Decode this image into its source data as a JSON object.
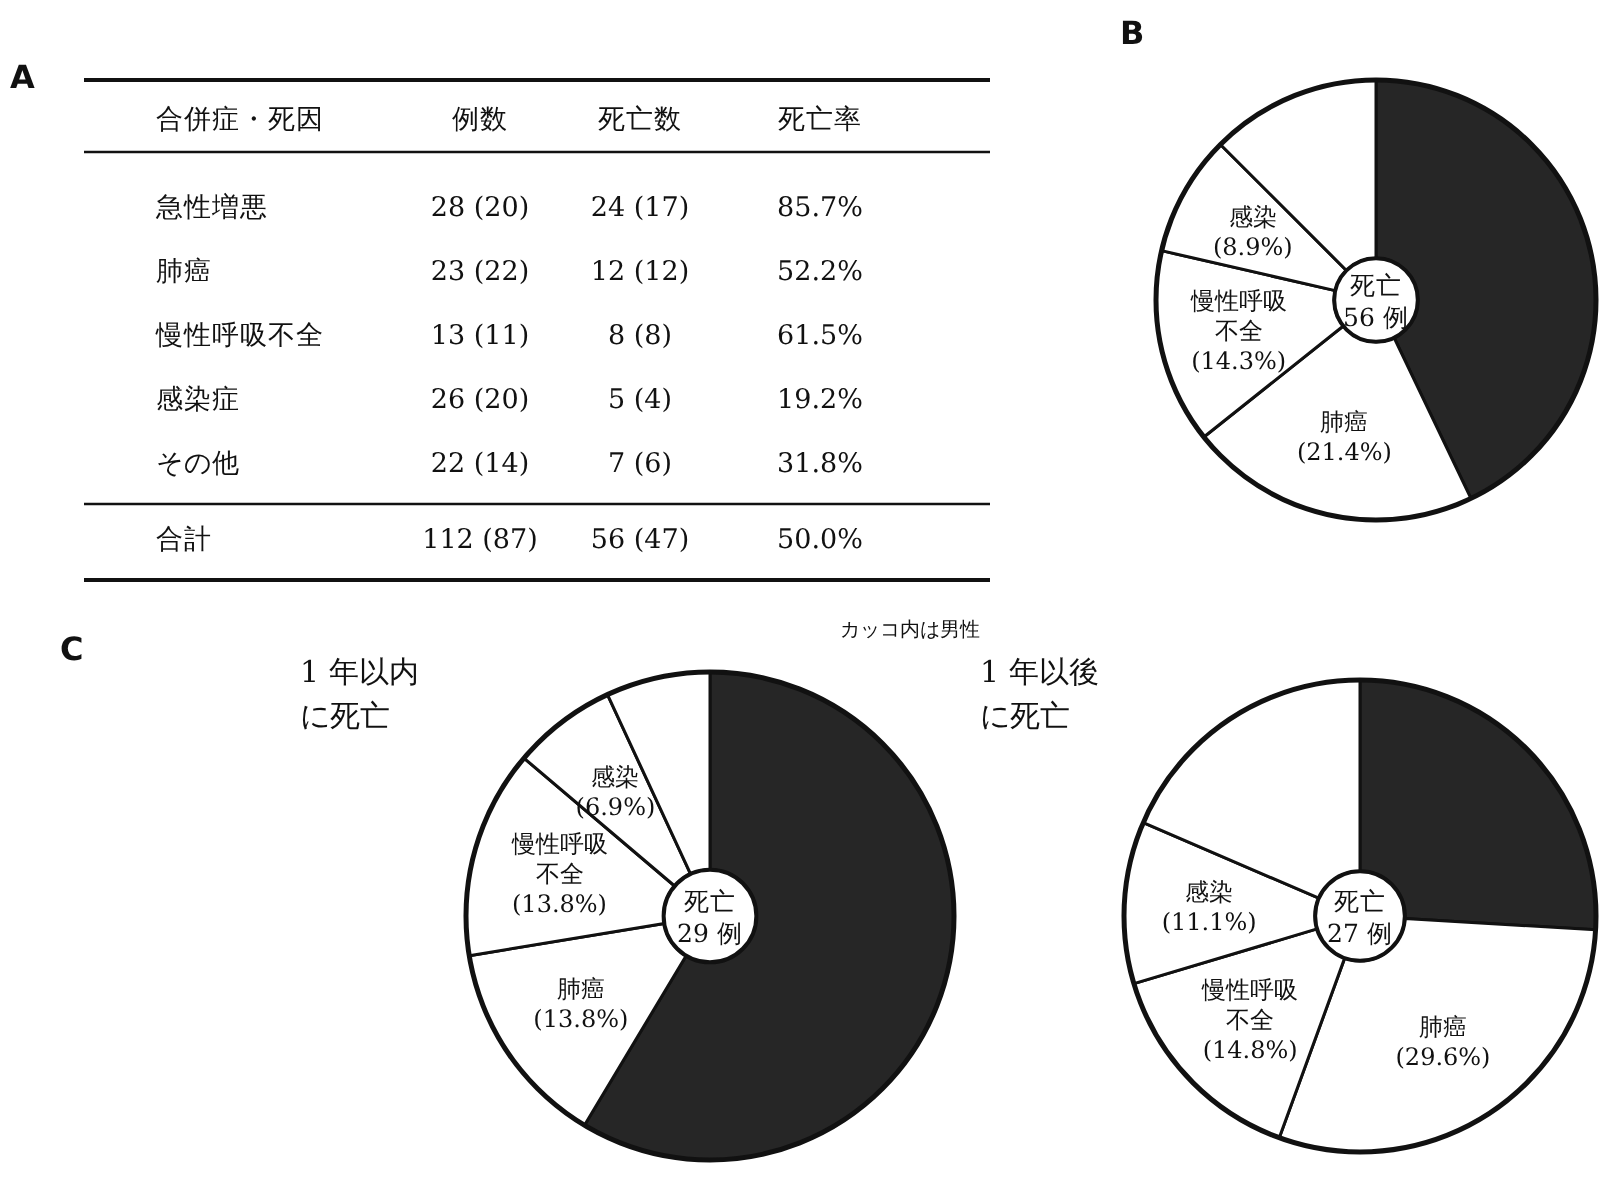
{
  "chart_data": [
    {
      "type": "other",
      "title": "A",
      "categories": [
        "合併症・死因",
        "例数",
        "死亡数",
        "死亡率"
      ],
      "y_categories": [
        "急性増悪",
        "肺癌",
        "慢性呼吸不全",
        "感染症",
        "その他",
        "合計"
      ],
      "cell_labels": [
        [
          "28 (20)",
          "24 (17)",
          "85.7%"
        ],
        [
          "23 (22)",
          "12 (12)",
          "52.2%"
        ],
        [
          "13 (11)",
          "8 (8)",
          "61.5%"
        ],
        [
          "26 (20)",
          "5 (4)",
          "19.2%"
        ],
        [
          "22 (14)",
          "7 (6)",
          "31.8%"
        ],
        [
          "112 (87)",
          "56 (47)",
          "50.0%"
        ]
      ],
      "annotations": [
        "カッコ内は男性"
      ]
    },
    {
      "type": "donut",
      "title": "B",
      "categories": [
        null,
        "肺癌",
        "慢性呼吸不全",
        "感染",
        null
      ],
      "values": [
        42.9,
        21.4,
        14.3,
        8.9,
        12.5
      ],
      "value_labels": [
        null,
        "(21.4%)",
        "(14.3%)",
        "(8.9%)",
        null
      ],
      "colors": [
        "#262626",
        "#ffffff",
        "#ffffff",
        "#ffffff",
        "#ffffff"
      ],
      "annotations": [
        "死亡\n56 例"
      ]
    },
    {
      "type": "donut",
      "title": "C",
      "subtitle": "1 年以内に死亡",
      "categories": [
        null,
        "肺癌",
        "慢性呼吸不全",
        "感染",
        null
      ],
      "values": [
        58.6,
        13.8,
        13.8,
        6.9,
        6.9
      ],
      "value_labels": [
        null,
        "(13.8%)",
        "(13.8%)",
        "(6.9%)",
        null
      ],
      "colors": [
        "#262626",
        "#ffffff",
        "#ffffff",
        "#ffffff",
        "#ffffff"
      ],
      "annotations": [
        "死亡\n29 例"
      ]
    },
    {
      "type": "donut",
      "subtitle": "1 年以後に死亡",
      "categories": [
        null,
        "肺癌",
        "慢性呼吸不全",
        "感染",
        null
      ],
      "values": [
        25.9,
        29.6,
        14.8,
        11.1,
        18.5
      ],
      "value_labels": [
        null,
        "(29.6%)",
        "(14.8%)",
        "(11.1%)",
        null
      ],
      "colors": [
        "#262626",
        "#ffffff",
        "#ffffff",
        "#ffffff",
        "#ffffff"
      ],
      "annotations": [
        "死亡\n27 例"
      ]
    }
  ]
}
